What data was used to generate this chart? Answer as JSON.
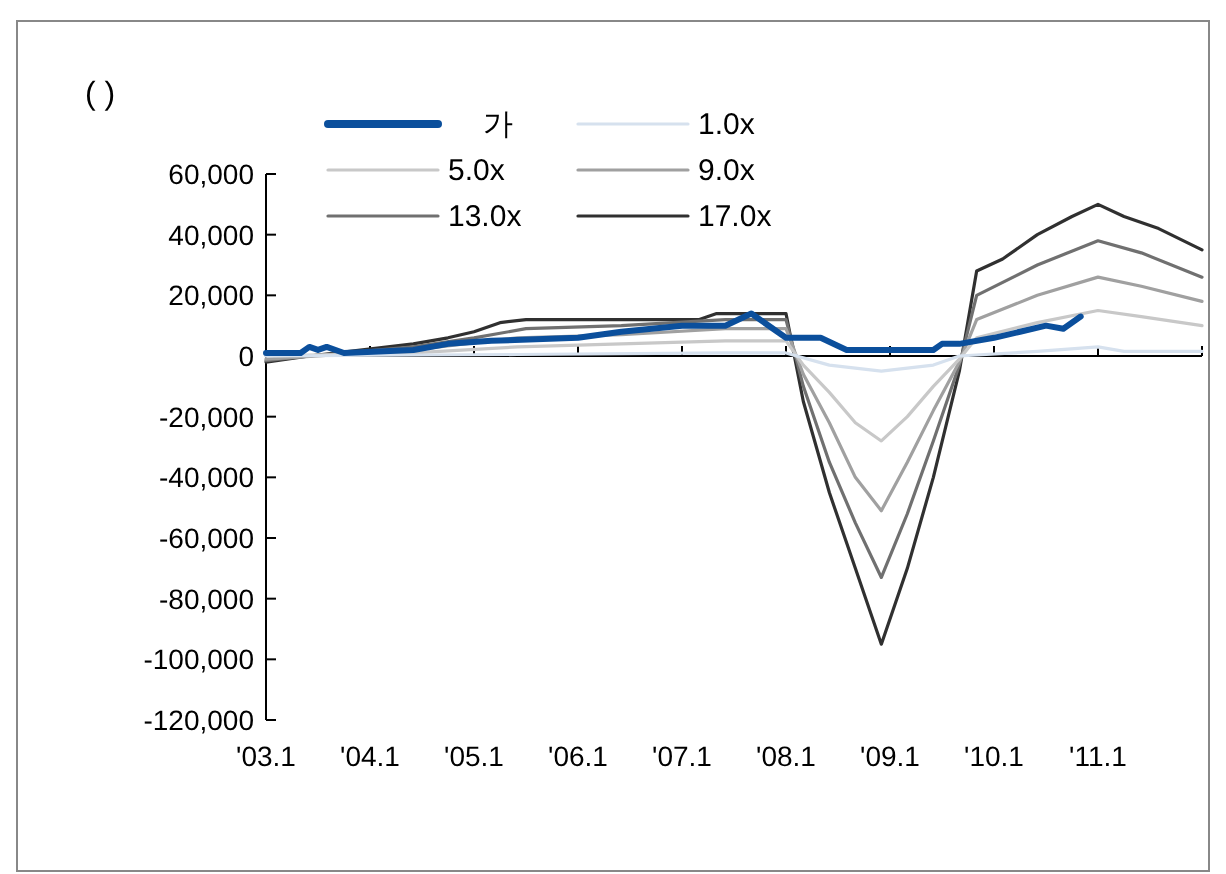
{
  "chart_data": {
    "type": "line",
    "ylabel": "( )",
    "legend": "top",
    "xlim": [
      "2003-01",
      "2012-01"
    ],
    "xticks": [
      {
        "value": "2003-01",
        "label": "'03.1"
      },
      {
        "value": "2004-01",
        "label": "'04.1"
      },
      {
        "value": "2005-01",
        "label": "'05.1"
      },
      {
        "value": "2006-01",
        "label": "'06.1"
      },
      {
        "value": "2007-01",
        "label": "'07.1"
      },
      {
        "value": "2008-01",
        "label": "'08.1"
      },
      {
        "value": "2009-01",
        "label": "'09.1"
      },
      {
        "value": "2010-01",
        "label": "'10.1"
      },
      {
        "value": "2011-01",
        "label": "'11.1"
      }
    ],
    "ylim": [
      -120000,
      60000
    ],
    "yticks": [
      {
        "value": -120000,
        "label": "-120,000"
      },
      {
        "value": -100000,
        "label": "-100,000"
      },
      {
        "value": -80000,
        "label": "-80,000"
      },
      {
        "value": -60000,
        "label": "-60,000"
      },
      {
        "value": -40000,
        "label": "-40,000"
      },
      {
        "value": -20000,
        "label": "-20,000"
      },
      {
        "value": 0,
        "label": "0"
      },
      {
        "value": 20000,
        "label": "20,000"
      },
      {
        "value": 40000,
        "label": "40,000"
      },
      {
        "value": 60000,
        "label": "60,000"
      }
    ],
    "series": [
      {
        "name": "가",
        "color": "#0b4f9c",
        "x": [
          "2003-01",
          "2003-05",
          "2003-06",
          "2003-07",
          "2003-08",
          "2003-10",
          "2004-06",
          "2004-10",
          "2005-03",
          "2006-01",
          "2006-06",
          "2007-01",
          "2007-06",
          "2007-09",
          "2007-12",
          "2008-01",
          "2008-05",
          "2008-08",
          "2009-06",
          "2009-07",
          "2009-09",
          "2010-01",
          "2010-04",
          "2010-07",
          "2010-09",
          "2010-11"
        ],
        "values": [
          1000,
          1000,
          3000,
          2000,
          3000,
          1000,
          2000,
          4000,
          5000,
          6000,
          8000,
          10000,
          10000,
          14000,
          8000,
          6000,
          6000,
          2000,
          2000,
          4000,
          4000,
          6000,
          8000,
          10000,
          9000,
          13000
        ]
      },
      {
        "name": "1.0x",
        "color": "#d6e1ee",
        "x": [
          "2003-01",
          "2005-06",
          "2007-06",
          "2008-01",
          "2008-06",
          "2008-12",
          "2009-06",
          "2009-09",
          "2010-06",
          "2011-01",
          "2011-04",
          "2012-01"
        ],
        "values": [
          0,
          500,
          1000,
          1000,
          -3000,
          -5000,
          -3000,
          0,
          1500,
          3000,
          1500,
          1500
        ]
      },
      {
        "name": "5.0x",
        "color": "#c8c8c8",
        "x": [
          "2003-01",
          "2004-06",
          "2005-06",
          "2006-06",
          "2007-06",
          "2008-01",
          "2008-03",
          "2008-06",
          "2008-09",
          "2008-12",
          "2009-03",
          "2009-06",
          "2009-09",
          "2009-11",
          "2010-06",
          "2011-01",
          "2011-06",
          "2012-01"
        ],
        "values": [
          0,
          1000,
          3000,
          4000,
          5000,
          5000,
          -3000,
          -12000,
          -22000,
          -28000,
          -20000,
          -10000,
          -1000,
          6000,
          11000,
          15000,
          13000,
          10000
        ]
      },
      {
        "name": "9.0x",
        "color": "#a0a0a0",
        "x": [
          "2003-01",
          "2004-06",
          "2005-06",
          "2006-06",
          "2007-06",
          "2008-01",
          "2008-03",
          "2008-06",
          "2008-09",
          "2008-12",
          "2009-03",
          "2009-06",
          "2009-09",
          "2009-11",
          "2010-06",
          "2011-01",
          "2011-06",
          "2012-01"
        ],
        "values": [
          -1000,
          2000,
          6000,
          7000,
          9000,
          9000,
          -6000,
          -22000,
          -40000,
          -51000,
          -35000,
          -18000,
          -2000,
          12000,
          20000,
          26000,
          23000,
          18000
        ]
      },
      {
        "name": "13.0x",
        "color": "#707070",
        "x": [
          "2003-01",
          "2003-06",
          "2004-06",
          "2005-01",
          "2005-07",
          "2006-06",
          "2007-06",
          "2008-01",
          "2008-03",
          "2008-06",
          "2008-09",
          "2008-12",
          "2009-03",
          "2009-06",
          "2009-09",
          "2009-11",
          "2010-06",
          "2011-01",
          "2011-06",
          "2012-01"
        ],
        "values": [
          -1500,
          0,
          3000,
          6000,
          9000,
          10000,
          12000,
          12000,
          -10000,
          -35000,
          -55000,
          -73000,
          -52000,
          -28000,
          -3000,
          20000,
          30000,
          38000,
          34000,
          26000
        ]
      },
      {
        "name": "17.0x",
        "color": "#303030",
        "x": [
          "2003-01",
          "2003-06",
          "2004-06",
          "2004-10",
          "2005-01",
          "2005-04",
          "2005-07",
          "2007-03",
          "2007-05",
          "2008-01",
          "2008-03",
          "2008-06",
          "2008-09",
          "2008-12",
          "2009-03",
          "2009-06",
          "2009-09",
          "2009-11",
          "2010-02",
          "2010-06",
          "2010-10",
          "2011-01",
          "2011-04",
          "2011-08",
          "2012-01"
        ],
        "values": [
          -2000,
          0,
          4000,
          6000,
          8000,
          11000,
          12000,
          12000,
          14000,
          14000,
          -15000,
          -45000,
          -70000,
          -95000,
          -70000,
          -40000,
          -5000,
          28000,
          32000,
          40000,
          46000,
          50000,
          46000,
          42000,
          35000
        ]
      }
    ]
  }
}
